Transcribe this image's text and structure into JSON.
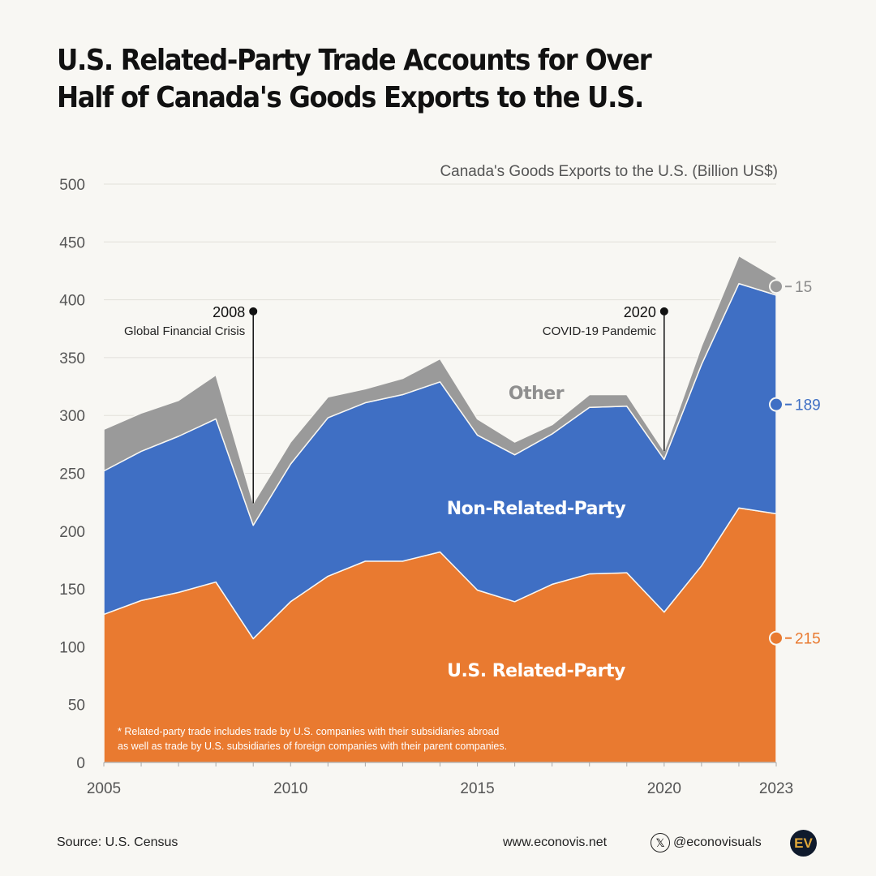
{
  "title_line1": "U.S. Related-Party Trade Accounts for Over",
  "title_line2": "Half of Canada's Goods Exports to the U.S.",
  "footer": {
    "source": "Source: U.S. Census",
    "website": "www.econovis.net",
    "handle": "@econovisuals",
    "logo": "EV",
    "social_icon": "x-logo-icon"
  },
  "chart_data": {
    "type": "area",
    "stacked": true,
    "ylabel": "Canada's Goods Exports to the U.S. (Billion US$)",
    "ylim": [
      0,
      500
    ],
    "yticks": [
      0,
      50,
      100,
      150,
      200,
      250,
      300,
      350,
      400,
      450,
      500
    ],
    "xlim": [
      2005,
      2023
    ],
    "xticks": [
      2005,
      2010,
      2015,
      2020,
      2023
    ],
    "grid": true,
    "x": [
      2005,
      2006,
      2007,
      2008,
      2009,
      2010,
      2011,
      2012,
      2013,
      2014,
      2015,
      2016,
      2017,
      2018,
      2019,
      2020,
      2021,
      2022,
      2023
    ],
    "series": [
      {
        "name": "U.S. Related-Party",
        "color": "#e97a30",
        "end_label": "215",
        "values": [
          128,
          140,
          147,
          156,
          107,
          139,
          161,
          174,
          174,
          182,
          149,
          139,
          154,
          163,
          164,
          130,
          170,
          220,
          215
        ]
      },
      {
        "name": "Non-Related-Party",
        "color": "#3f6fc4",
        "end_label": "189",
        "values": [
          124,
          129,
          135,
          141,
          98,
          119,
          137,
          137,
          144,
          147,
          134,
          127,
          130,
          144,
          144,
          132,
          174,
          194,
          189
        ]
      },
      {
        "name": "Other",
        "color": "#9a9a9a",
        "end_label": "15",
        "values": [
          36,
          33,
          31,
          38,
          19,
          19,
          18,
          12,
          14,
          20,
          14,
          11,
          8,
          11,
          10,
          7,
          16,
          24,
          15
        ]
      }
    ],
    "annotations": [
      {
        "year_label": "2008",
        "text": "Global Financial Crisis",
        "x": 2009,
        "y": 390
      },
      {
        "year_label": "2020",
        "text": "COVID-19 Pandemic",
        "x": 2020,
        "y": 390
      }
    ],
    "footnote_line1": "* Related-party trade includes trade by U.S. companies with their subsidiaries abroad",
    "footnote_line2": "as well as trade by U.S. subsidiaries of foreign companies with their parent companies."
  }
}
